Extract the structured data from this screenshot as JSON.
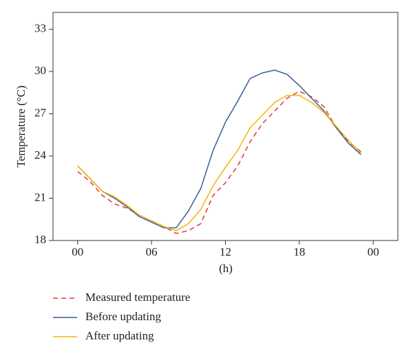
{
  "chart_data": {
    "type": "line",
    "y_label": "Temperature (°C)",
    "x_label": "(h)",
    "x": [
      0,
      1,
      2,
      3,
      4,
      5,
      6,
      7,
      8,
      9,
      10,
      11,
      12,
      13,
      14,
      15,
      16,
      17,
      18,
      19,
      20,
      21,
      22,
      23
    ],
    "series": [
      {
        "name": "Measured temperature",
        "color": "#e8322a",
        "dashed": true,
        "values": [
          22.9,
          22.2,
          21.2,
          20.6,
          20.3,
          19.8,
          19.4,
          19.0,
          18.5,
          18.7,
          19.2,
          21.2,
          22.1,
          23.3,
          25.0,
          26.3,
          27.2,
          28.1,
          28.6,
          28.2,
          27.5,
          26.0,
          25.0,
          24.3
        ]
      },
      {
        "name": "Before updating",
        "color": "#3b5c95",
        "dashed": false,
        "values": [
          23.3,
          22.4,
          21.5,
          21.0,
          20.4,
          19.7,
          19.3,
          18.9,
          18.9,
          20.1,
          21.7,
          24.4,
          26.4,
          27.9,
          29.5,
          29.9,
          30.1,
          29.8,
          29.0,
          28.1,
          27.2,
          26.0,
          24.9,
          24.1
        ]
      },
      {
        "name": "After updating",
        "color": "#f5b400",
        "dashed": false,
        "values": [
          23.3,
          22.4,
          21.5,
          21.1,
          20.5,
          19.8,
          19.4,
          19.0,
          18.7,
          19.2,
          20.2,
          21.9,
          23.2,
          24.4,
          26.0,
          26.9,
          27.8,
          28.3,
          28.3,
          27.8,
          27.1,
          26.1,
          25.1,
          24.2
        ]
      }
    ],
    "xlim": [
      -2,
      26
    ],
    "xticks": [
      {
        "value": 0,
        "label": "00"
      },
      {
        "value": 6,
        "label": "06"
      },
      12,
      18,
      {
        "value": 24,
        "label": "00"
      }
    ],
    "ylim": [
      18,
      34.2
    ],
    "yticks": [
      18,
      21,
      24,
      27,
      30,
      33
    ],
    "legend": "bottom-left"
  }
}
